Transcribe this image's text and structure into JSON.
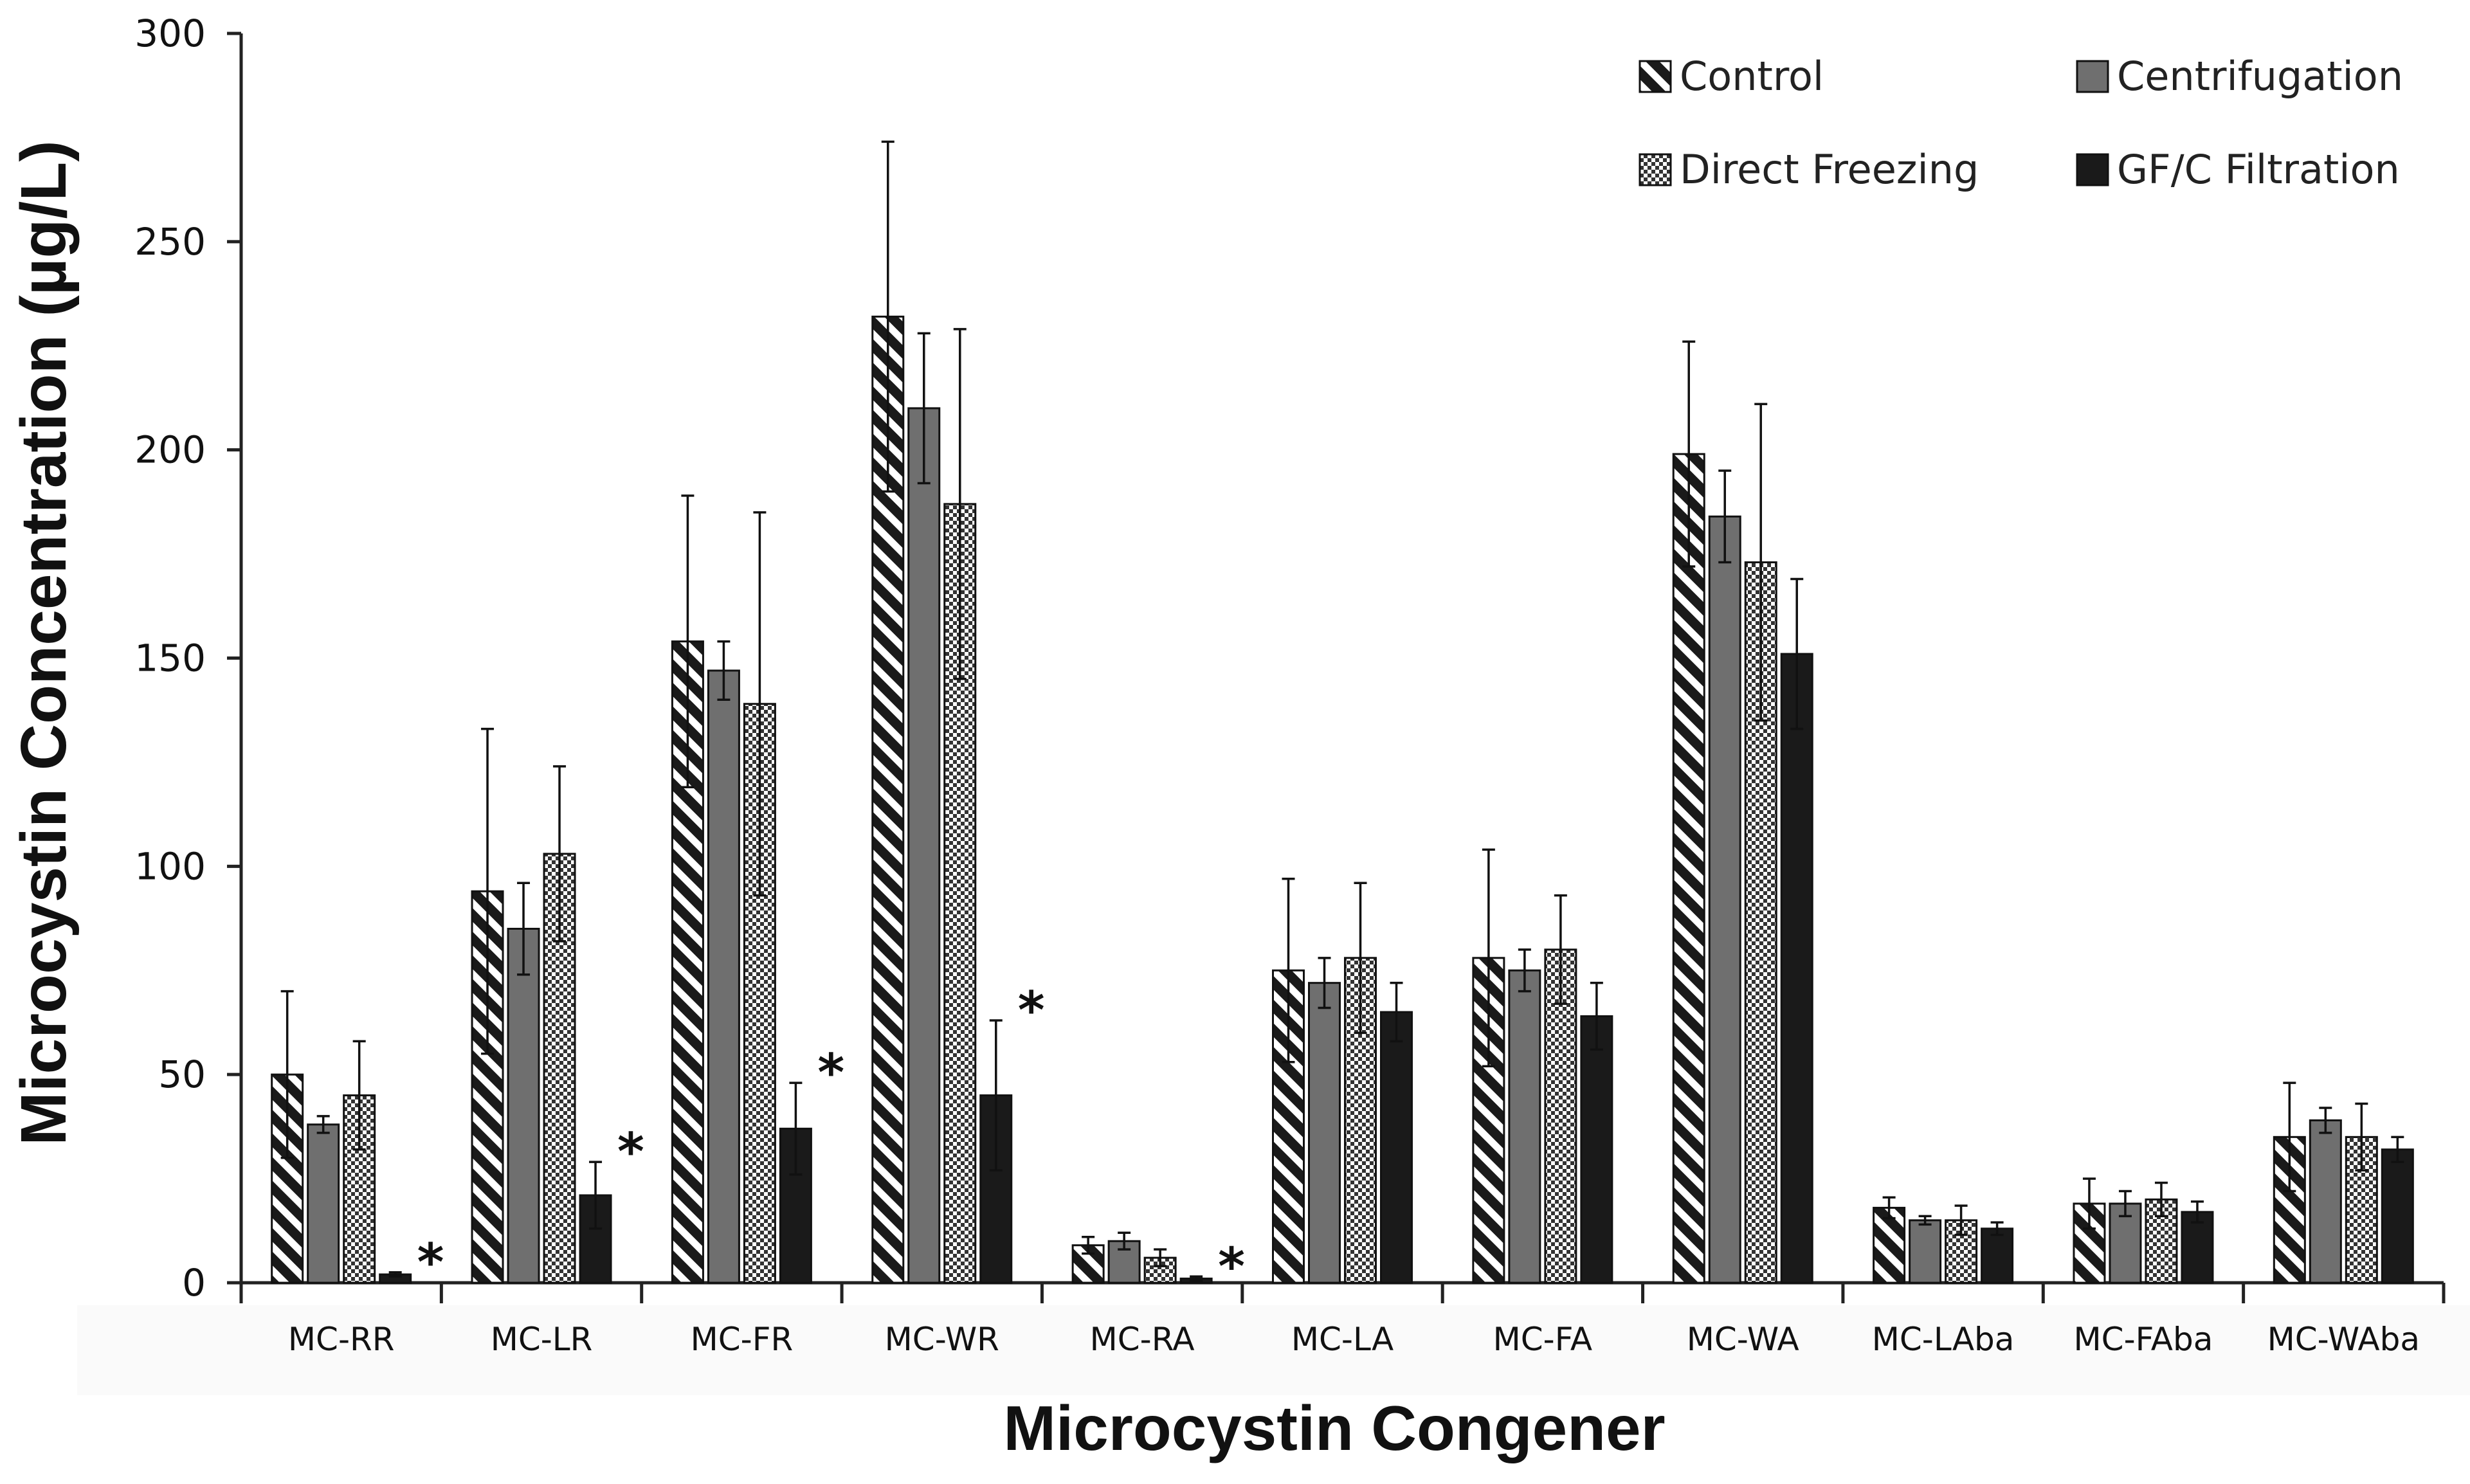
{
  "chart_data": {
    "type": "bar",
    "title": "",
    "xlabel": "Microcystin Congener",
    "ylabel": "Microcystin Concentration (µg/L)",
    "ylim": [
      0,
      300
    ],
    "yticks": [
      0,
      50,
      100,
      150,
      200,
      250,
      300
    ],
    "categories": [
      "MC-RR",
      "MC-LR",
      "MC-FR",
      "MC-WR",
      "MC-RA",
      "MC-LA",
      "MC-FA",
      "MC-WA",
      "MC-LAba",
      "MC-FAba",
      "MC-WAba"
    ],
    "series": [
      {
        "name": "Control",
        "pattern": "diagonal-stripes",
        "values": [
          50,
          94,
          154,
          232,
          9,
          75,
          78,
          199,
          18,
          19,
          35
        ],
        "errors": [
          20,
          39,
          35,
          42,
          2,
          22,
          26,
          27,
          2.5,
          6,
          13
        ]
      },
      {
        "name": "Centrifugation",
        "pattern": "solid-gray",
        "values": [
          38,
          85,
          147,
          210,
          10,
          72,
          75,
          184,
          15,
          19,
          39
        ],
        "errors": [
          2,
          11,
          7,
          18,
          2,
          6,
          5,
          11,
          1,
          3,
          3
        ]
      },
      {
        "name": "Direct Freezing",
        "pattern": "checkerboard",
        "values": [
          45,
          103,
          139,
          187,
          6,
          78,
          80,
          173,
          15,
          20,
          35
        ],
        "errors": [
          13,
          21,
          46,
          42,
          2,
          18,
          13,
          38,
          3.5,
          4,
          8
        ]
      },
      {
        "name": "GF/C Filtration",
        "pattern": "solid-black",
        "values": [
          2,
          21,
          37,
          45,
          1,
          65,
          64,
          151,
          13,
          17,
          32
        ],
        "errors": [
          0.5,
          8,
          11,
          18,
          0.5,
          7,
          8,
          18,
          1.5,
          2.5,
          3
        ]
      }
    ],
    "significance": [
      {
        "category": "MC-RR",
        "series": "GF/C Filtration",
        "label": "*"
      },
      {
        "category": "MC-LR",
        "series": "GF/C Filtration",
        "label": "*"
      },
      {
        "category": "MC-FR",
        "series": "GF/C Filtration",
        "label": "*"
      },
      {
        "category": "MC-WR",
        "series": "GF/C Filtration",
        "label": "*"
      },
      {
        "category": "MC-RA",
        "series": "GF/C Filtration",
        "label": "*"
      }
    ],
    "legend_position": "top-right",
    "colors": {
      "bar_fill": "#1a1a1a",
      "gray": "#6f6f6f",
      "axis": "#222222"
    }
  }
}
